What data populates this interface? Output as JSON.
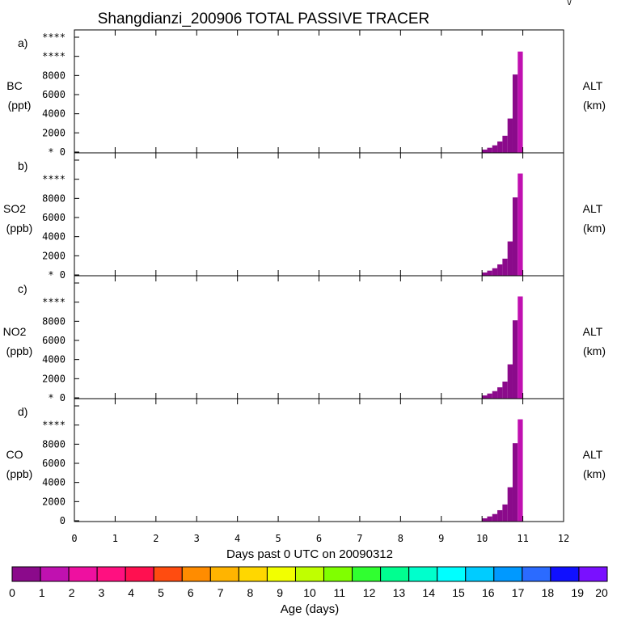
{
  "title": "Shangdianzi_200906 TOTAL PASSIVE TRACER",
  "corner_mark": "\\/",
  "chart_data": {
    "type": "bar",
    "x_axis": {
      "label": "Days past 0 UTC on 20090312",
      "range": [
        0,
        12
      ],
      "ticks": [
        "0",
        "1",
        "2",
        "3",
        "4",
        "5",
        "6",
        "7",
        "8",
        "9",
        "10",
        "11",
        "12"
      ]
    },
    "bin_width": 0.125,
    "panels": [
      {
        "panel_label": "a)",
        "ylabel": "BC",
        "yunit": "(ppt)",
        "right_label": "ALT",
        "right_unit": "(km)",
        "ylim": [
          0,
          12000
        ],
        "ytick_values": [
          0,
          2000,
          4000,
          6000,
          8000,
          10000,
          12000
        ],
        "ytick_labels": [
          "* 0",
          "2000",
          "4000",
          "6000",
          "8000",
          "****",
          "****"
        ],
        "bars": [
          {
            "x": 10.0,
            "value": 250,
            "age": 0.5
          },
          {
            "x": 10.125,
            "value": 450,
            "age": 0.5
          },
          {
            "x": 10.25,
            "value": 700,
            "age": 0.5
          },
          {
            "x": 10.375,
            "value": 1100,
            "age": 0.5
          },
          {
            "x": 10.5,
            "value": 1700,
            "age": 0.5
          },
          {
            "x": 10.625,
            "value": 3500,
            "age": 0.5
          },
          {
            "x": 10.75,
            "value": 8100,
            "age": 0.5
          },
          {
            "x": 10.875,
            "value": 10500,
            "age": 1.5
          }
        ]
      },
      {
        "panel_label": "b)",
        "ylabel": "SO2",
        "yunit": "(ppb)",
        "right_label": "ALT",
        "right_unit": "(km)",
        "ylim": [
          0,
          12000
        ],
        "ytick_values": [
          0,
          2000,
          4000,
          6000,
          8000,
          10000,
          12000
        ],
        "ytick_labels": [
          "* 0",
          "2000",
          "4000",
          "6000",
          "8000",
          "****",
          ""
        ],
        "bars": [
          {
            "x": 10.0,
            "value": 250,
            "age": 0.5
          },
          {
            "x": 10.125,
            "value": 450,
            "age": 0.5
          },
          {
            "x": 10.25,
            "value": 700,
            "age": 0.5
          },
          {
            "x": 10.375,
            "value": 1100,
            "age": 0.5
          },
          {
            "x": 10.5,
            "value": 1700,
            "age": 0.5
          },
          {
            "x": 10.625,
            "value": 3500,
            "age": 0.5
          },
          {
            "x": 10.75,
            "value": 8100,
            "age": 0.5
          },
          {
            "x": 10.875,
            "value": 10600,
            "age": 1.5
          }
        ]
      },
      {
        "panel_label": "c)",
        "ylabel": "NO2",
        "yunit": "(ppb)",
        "right_label": "ALT",
        "right_unit": "(km)",
        "ylim": [
          0,
          12000
        ],
        "ytick_values": [
          0,
          2000,
          4000,
          6000,
          8000,
          10000,
          12000
        ],
        "ytick_labels": [
          "* 0",
          "2000",
          "4000",
          "6000",
          "8000",
          "****",
          ""
        ],
        "bars": [
          {
            "x": 10.0,
            "value": 250,
            "age": 0.5
          },
          {
            "x": 10.125,
            "value": 450,
            "age": 0.5
          },
          {
            "x": 10.25,
            "value": 700,
            "age": 0.5
          },
          {
            "x": 10.375,
            "value": 1100,
            "age": 0.5
          },
          {
            "x": 10.5,
            "value": 1700,
            "age": 0.5
          },
          {
            "x": 10.625,
            "value": 3500,
            "age": 0.5
          },
          {
            "x": 10.75,
            "value": 8100,
            "age": 0.5
          },
          {
            "x": 10.875,
            "value": 10600,
            "age": 1.5
          }
        ]
      },
      {
        "panel_label": "d)",
        "ylabel": "CO",
        "yunit": "(ppb)",
        "right_label": "ALT",
        "right_unit": "(km)",
        "ylim": [
          0,
          12000
        ],
        "ytick_values": [
          0,
          2000,
          4000,
          6000,
          8000,
          10000,
          12000
        ],
        "ytick_labels": [
          "0",
          "2000",
          "4000",
          "6000",
          "8000",
          "****",
          ""
        ],
        "bars": [
          {
            "x": 10.0,
            "value": 250,
            "age": 0.5
          },
          {
            "x": 10.125,
            "value": 450,
            "age": 0.5
          },
          {
            "x": 10.25,
            "value": 700,
            "age": 0.5
          },
          {
            "x": 10.375,
            "value": 1100,
            "age": 0.5
          },
          {
            "x": 10.5,
            "value": 1700,
            "age": 0.5
          },
          {
            "x": 10.625,
            "value": 3500,
            "age": 0.5
          },
          {
            "x": 10.75,
            "value": 8100,
            "age": 0.5
          },
          {
            "x": 10.875,
            "value": 10600,
            "age": 1.5
          }
        ]
      }
    ],
    "colorbar": {
      "label": "Age (days)",
      "range": [
        0,
        20
      ],
      "tick_labels": [
        "0",
        "1",
        "2",
        "3",
        "4",
        "5",
        "6",
        "7",
        "8",
        "9",
        "10",
        "11",
        "12",
        "13",
        "14",
        "15",
        "16",
        "17",
        "18",
        "19",
        "20"
      ],
      "colors": [
        "#8b0a8b",
        "#c011b0",
        "#ee10a0",
        "#ff1080",
        "#ff1050",
        "#ff4c10",
        "#ff8c00",
        "#ffb400",
        "#ffd700",
        "#f2ff00",
        "#c0ff00",
        "#80ff00",
        "#30ff30",
        "#00ff90",
        "#00ffcc",
        "#00ffff",
        "#00ccff",
        "#0099ff",
        "#2b6bff",
        "#1010ff",
        "#7a10ff"
      ]
    }
  }
}
